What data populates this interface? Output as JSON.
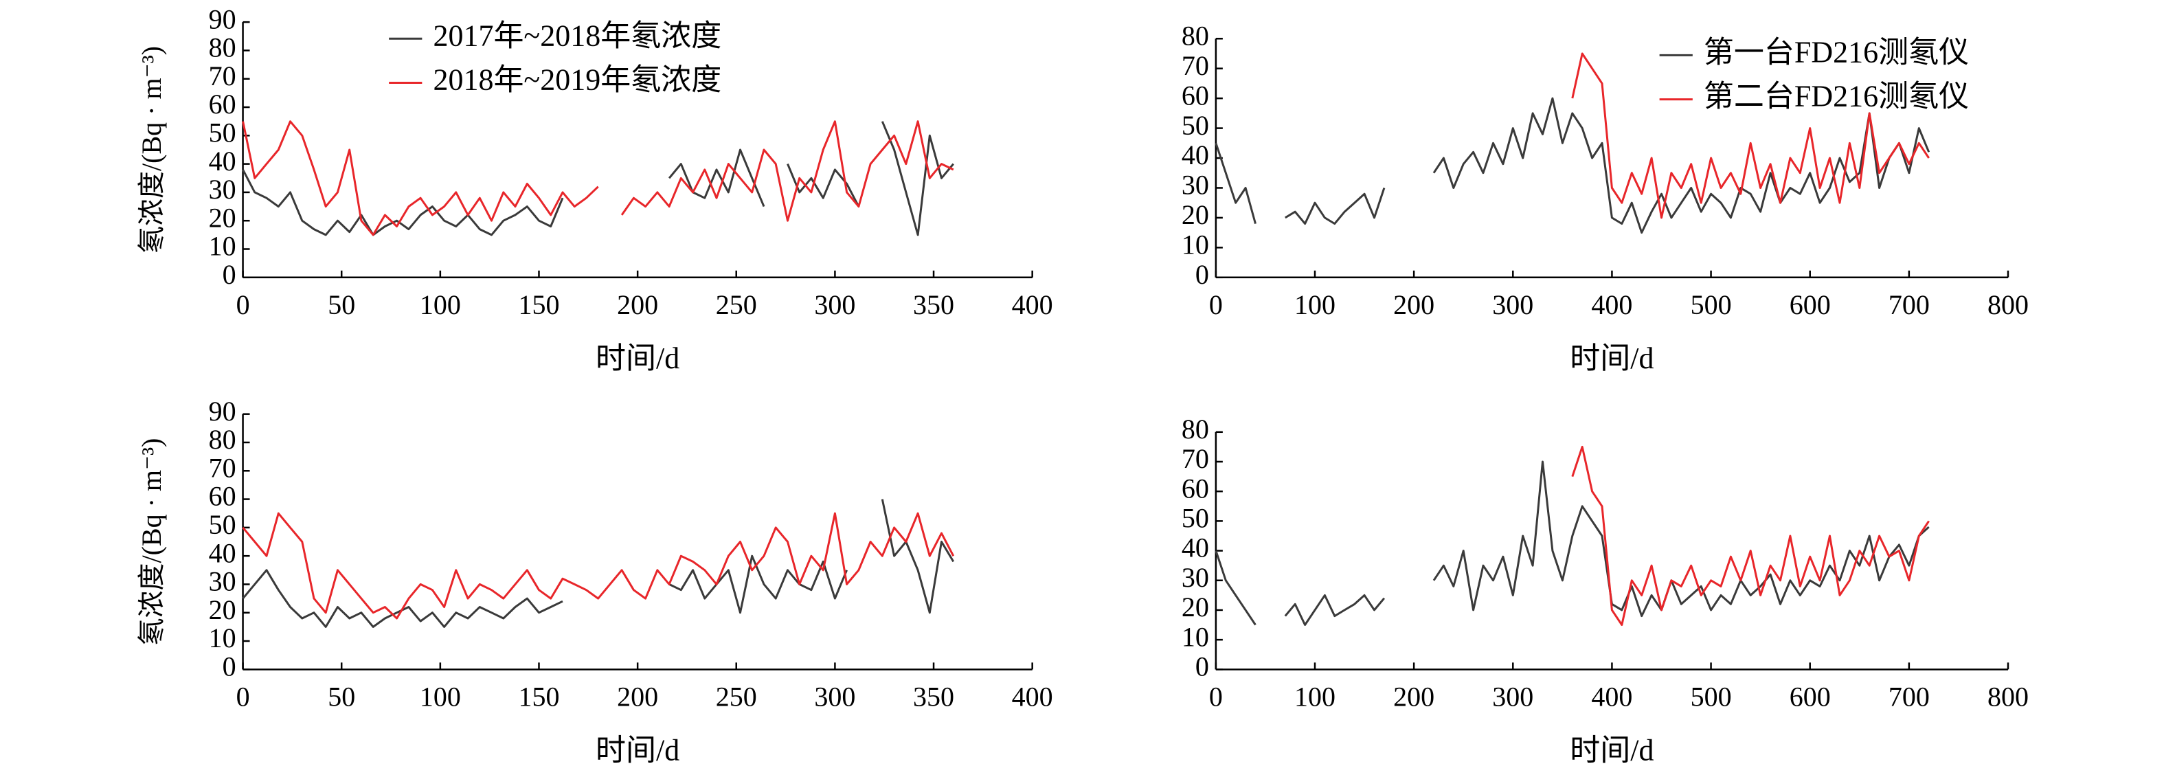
{
  "chart_data": [
    {
      "type": "line",
      "legend": "upper center",
      "xlabel": "时间/d",
      "ylabel": "氡浓度/(Bq · m⁻³)",
      "xlim": [
        0,
        400
      ],
      "xticks": [
        0,
        50,
        100,
        150,
        200,
        250,
        300,
        350,
        400
      ],
      "ylim": [
        0,
        90
      ],
      "yticks": [
        0,
        10,
        20,
        30,
        40,
        50,
        60,
        70,
        80,
        90
      ],
      "x": [
        0,
        6,
        12,
        18,
        24,
        30,
        36,
        42,
        48,
        54,
        60,
        66,
        72,
        78,
        84,
        90,
        96,
        102,
        108,
        114,
        120,
        126,
        132,
        138,
        144,
        150,
        156,
        162,
        168,
        174,
        180,
        186,
        192,
        198,
        204,
        210,
        216,
        222,
        228,
        234,
        240,
        246,
        252,
        258,
        264,
        270,
        276,
        282,
        288,
        294,
        300,
        306,
        312,
        318,
        324,
        330,
        336,
        342,
        348,
        354,
        360
      ],
      "series": [
        {
          "name": "2017年~2018年氡浓度",
          "color": "#3a3a3a",
          "values": [
            38,
            30,
            28,
            25,
            30,
            20,
            17,
            15,
            20,
            16,
            22,
            15,
            18,
            20,
            17,
            22,
            25,
            20,
            18,
            22,
            17,
            15,
            20,
            22,
            25,
            20,
            18,
            28,
            null,
            null,
            null,
            null,
            null,
            null,
            null,
            null,
            35,
            40,
            30,
            28,
            38,
            30,
            45,
            35,
            25,
            null,
            40,
            30,
            35,
            28,
            38,
            33,
            25,
            null,
            55,
            45,
            30,
            15,
            50,
            35,
            40
          ]
        },
        {
          "name": "2018年~2019年氡浓度",
          "color": "#e8262a",
          "values": [
            55,
            35,
            40,
            45,
            55,
            50,
            38,
            25,
            30,
            45,
            20,
            15,
            22,
            18,
            25,
            28,
            22,
            25,
            30,
            22,
            28,
            20,
            30,
            25,
            33,
            28,
            22,
            30,
            25,
            28,
            32,
            null,
            22,
            28,
            25,
            30,
            25,
            35,
            30,
            38,
            28,
            40,
            35,
            30,
            45,
            40,
            20,
            35,
            30,
            45,
            55,
            30,
            25,
            40,
            45,
            50,
            40,
            55,
            35,
            40,
            38
          ]
        }
      ]
    },
    {
      "type": "line",
      "legend": "upper right",
      "xlabel": "时间/d",
      "xlim": [
        0,
        800
      ],
      "xticks": [
        0,
        100,
        200,
        300,
        400,
        500,
        600,
        700,
        800
      ],
      "ylim": [
        0,
        80
      ],
      "yticks": [
        0,
        10,
        20,
        30,
        40,
        50,
        60,
        70,
        80
      ],
      "x": [
        0,
        10,
        20,
        30,
        40,
        50,
        60,
        70,
        80,
        90,
        100,
        110,
        120,
        130,
        140,
        150,
        160,
        170,
        180,
        190,
        200,
        210,
        220,
        230,
        240,
        250,
        260,
        270,
        280,
        290,
        300,
        310,
        320,
        330,
        340,
        350,
        360,
        370,
        380,
        390,
        400,
        410,
        420,
        430,
        440,
        450,
        460,
        470,
        480,
        490,
        500,
        510,
        520,
        530,
        540,
        550,
        560,
        570,
        580,
        590,
        600,
        610,
        620,
        630,
        640,
        650,
        660,
        670,
        680,
        690,
        700,
        710,
        720,
        730
      ],
      "series": [
        {
          "name": "第一台FD216测氡仪",
          "color": "#3a3a3a",
          "values": [
            45,
            35,
            25,
            30,
            18,
            null,
            null,
            20,
            22,
            18,
            25,
            20,
            18,
            22,
            25,
            28,
            20,
            30,
            null,
            null,
            null,
            null,
            35,
            40,
            30,
            38,
            42,
            35,
            45,
            38,
            50,
            40,
            55,
            48,
            60,
            45,
            55,
            50,
            40,
            45,
            20,
            18,
            25,
            15,
            22,
            28,
            20,
            25,
            30,
            22,
            28,
            25,
            20,
            30,
            28,
            22,
            35,
            25,
            30,
            28,
            35,
            25,
            30,
            40,
            32,
            35,
            55,
            30,
            40,
            45,
            35,
            50,
            42,
            null
          ]
        },
        {
          "name": "第二台FD216测氡仪",
          "color": "#e8262a",
          "values": [
            null,
            null,
            null,
            null,
            null,
            null,
            null,
            null,
            null,
            null,
            null,
            null,
            null,
            null,
            null,
            null,
            null,
            null,
            null,
            null,
            null,
            null,
            null,
            null,
            null,
            null,
            null,
            null,
            null,
            null,
            null,
            null,
            null,
            null,
            null,
            null,
            60,
            75,
            70,
            65,
            30,
            25,
            35,
            28,
            40,
            20,
            35,
            30,
            38,
            25,
            40,
            30,
            35,
            28,
            45,
            30,
            38,
            25,
            40,
            35,
            50,
            30,
            40,
            25,
            45,
            30,
            55,
            35,
            40,
            45,
            38,
            45,
            40,
            null
          ]
        }
      ]
    },
    {
      "type": "line",
      "xlabel": "时间/d",
      "ylabel": "氡浓度/(Bq · m⁻³)",
      "xlim": [
        0,
        400
      ],
      "xticks": [
        0,
        50,
        100,
        150,
        200,
        250,
        300,
        350,
        400
      ],
      "ylim": [
        0,
        90
      ],
      "yticks": [
        0,
        10,
        20,
        30,
        40,
        50,
        60,
        70,
        80,
        90
      ],
      "x": [
        0,
        6,
        12,
        18,
        24,
        30,
        36,
        42,
        48,
        54,
        60,
        66,
        72,
        78,
        84,
        90,
        96,
        102,
        108,
        114,
        120,
        126,
        132,
        138,
        144,
        150,
        156,
        162,
        168,
        174,
        180,
        186,
        192,
        198,
        204,
        210,
        216,
        222,
        228,
        234,
        240,
        246,
        252,
        258,
        264,
        270,
        276,
        282,
        288,
        294,
        300,
        306,
        312,
        318,
        324,
        330,
        336,
        342,
        348,
        354,
        360
      ],
      "series": [
        {
          "color": "#3a3a3a",
          "values": [
            25,
            30,
            35,
            28,
            22,
            18,
            20,
            15,
            22,
            18,
            20,
            15,
            18,
            20,
            22,
            17,
            20,
            15,
            20,
            18,
            22,
            20,
            18,
            22,
            25,
            20,
            22,
            24,
            null,
            null,
            null,
            null,
            null,
            null,
            null,
            null,
            30,
            28,
            35,
            25,
            30,
            35,
            20,
            40,
            30,
            25,
            35,
            30,
            28,
            38,
            25,
            35,
            null,
            null,
            60,
            40,
            45,
            35,
            20,
            45,
            38
          ]
        },
        {
          "color": "#e8262a",
          "values": [
            50,
            45,
            40,
            55,
            50,
            45,
            25,
            20,
            35,
            30,
            25,
            20,
            22,
            18,
            25,
            30,
            28,
            22,
            35,
            25,
            30,
            28,
            25,
            30,
            35,
            28,
            25,
            32,
            30,
            28,
            25,
            30,
            35,
            28,
            25,
            35,
            30,
            40,
            38,
            35,
            30,
            40,
            45,
            35,
            40,
            50,
            45,
            30,
            40,
            35,
            55,
            30,
            35,
            45,
            40,
            50,
            45,
            55,
            40,
            48,
            40
          ]
        }
      ]
    },
    {
      "type": "line",
      "xlabel": "时间/d",
      "xlim": [
        0,
        800
      ],
      "xticks": [
        0,
        100,
        200,
        300,
        400,
        500,
        600,
        700,
        800
      ],
      "ylim": [
        0,
        80
      ],
      "yticks": [
        0,
        10,
        20,
        30,
        40,
        50,
        60,
        70,
        80
      ],
      "x": [
        0,
        10,
        20,
        30,
        40,
        50,
        60,
        70,
        80,
        90,
        100,
        110,
        120,
        130,
        140,
        150,
        160,
        170,
        180,
        190,
        200,
        210,
        220,
        230,
        240,
        250,
        260,
        270,
        280,
        290,
        300,
        310,
        320,
        330,
        340,
        350,
        360,
        370,
        380,
        390,
        400,
        410,
        420,
        430,
        440,
        450,
        460,
        470,
        480,
        490,
        500,
        510,
        520,
        530,
        540,
        550,
        560,
        570,
        580,
        590,
        600,
        610,
        620,
        630,
        640,
        650,
        660,
        670,
        680,
        690,
        700,
        710,
        720,
        730
      ],
      "series": [
        {
          "color": "#3a3a3a",
          "values": [
            40,
            30,
            25,
            20,
            15,
            null,
            null,
            18,
            22,
            15,
            20,
            25,
            18,
            20,
            22,
            25,
            20,
            24,
            null,
            null,
            null,
            null,
            30,
            35,
            28,
            40,
            20,
            35,
            30,
            38,
            25,
            45,
            35,
            70,
            40,
            30,
            45,
            55,
            50,
            45,
            22,
            20,
            28,
            18,
            25,
            20,
            30,
            22,
            25,
            28,
            20,
            25,
            22,
            30,
            25,
            28,
            32,
            22,
            30,
            25,
            30,
            28,
            35,
            30,
            40,
            35,
            45,
            30,
            38,
            42,
            35,
            45,
            48,
            null
          ]
        },
        {
          "color": "#e8262a",
          "values": [
            null,
            null,
            null,
            null,
            null,
            null,
            null,
            null,
            null,
            null,
            null,
            null,
            null,
            null,
            null,
            null,
            null,
            null,
            null,
            null,
            null,
            null,
            null,
            null,
            null,
            null,
            null,
            null,
            null,
            null,
            null,
            null,
            null,
            null,
            null,
            null,
            65,
            75,
            60,
            55,
            20,
            15,
            30,
            25,
            35,
            20,
            30,
            28,
            35,
            25,
            30,
            28,
            38,
            30,
            40,
            25,
            35,
            30,
            45,
            28,
            38,
            30,
            45,
            25,
            30,
            40,
            35,
            45,
            38,
            40,
            30,
            45,
            50,
            null
          ]
        }
      ]
    }
  ]
}
